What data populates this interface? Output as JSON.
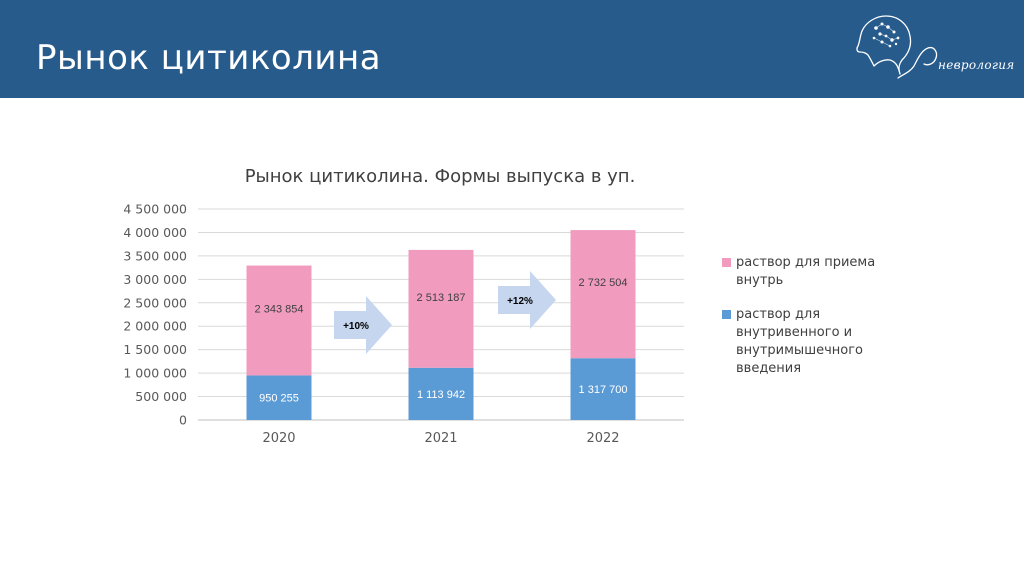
{
  "slide": {
    "title": "Рынок цитиколина",
    "logo_text": "неврология"
  },
  "colors": {
    "header": "#265b8c",
    "series_oral": "#f19cbf",
    "series_injection": "#5b9bd5",
    "arrow": "#c5d6ee"
  },
  "chart_data": {
    "type": "bar",
    "stacked": true,
    "title": "Рынок цитиколина. Формы выпуска в уп.",
    "categories": [
      "2020",
      "2021",
      "2022"
    ],
    "series": [
      {
        "name": "раствор для внутривенного и внутримышечного введения",
        "values": [
          950255,
          1113942,
          1317700
        ],
        "labels": [
          "950 255",
          "1 113 942",
          "1 317 700"
        ]
      },
      {
        "name": "раствор для приема внутрь",
        "values": [
          2343854,
          2513187,
          2732504
        ],
        "labels": [
          "2 343 854",
          "2 513 187",
          "2 732 504"
        ]
      }
    ],
    "ylim": [
      0,
      4500000
    ],
    "yticks": [
      0,
      500000,
      1000000,
      1500000,
      2000000,
      2500000,
      3000000,
      3500000,
      4000000,
      4500000
    ],
    "ytick_labels": [
      "0",
      "500 000",
      "1 000 000",
      "1 500 000",
      "2 000 000",
      "2 500 000",
      "3 000 000",
      "3 500 000",
      "4 000 000",
      "4 500 000"
    ],
    "grid": true,
    "legend_position": "right",
    "annotations": [
      "+10%",
      "+12%"
    ]
  }
}
